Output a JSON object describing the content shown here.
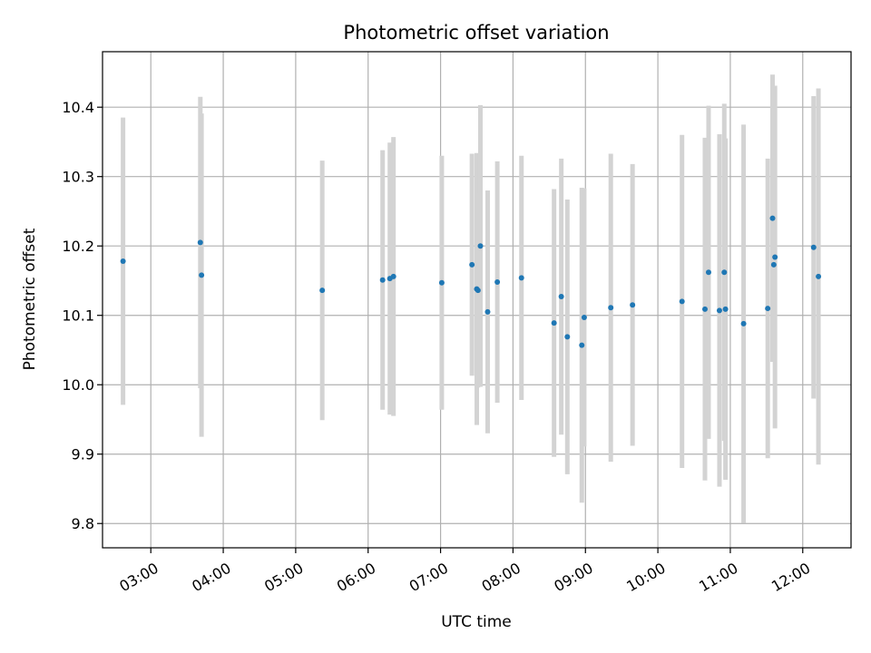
{
  "chart_data": {
    "type": "scatter",
    "title": "Photometric offset variation",
    "xlabel": "UTC time",
    "ylabel": "Photometric offset",
    "grid": true,
    "xlim": [
      "02:20",
      "12:40"
    ],
    "ylim": [
      9.765,
      10.48
    ],
    "x_ticks": [
      "03:00",
      "04:00",
      "05:00",
      "06:00",
      "07:00",
      "08:00",
      "09:00",
      "10:00",
      "11:00",
      "12:00"
    ],
    "y_ticks": [
      9.8,
      9.9,
      10.0,
      10.1,
      10.2,
      10.3,
      10.4
    ],
    "y_tick_labels": [
      "9.8",
      "9.9",
      "10.0",
      "10.1",
      "10.2",
      "10.3",
      "10.4"
    ],
    "colors": {
      "points": "#1f77b4",
      "errorbars": "#d3d3d3",
      "grid": "#b0b0b0"
    },
    "points": [
      {
        "time": "02:37",
        "y": 10.178,
        "err": 0.207
      },
      {
        "time": "03:41",
        "y": 10.205,
        "err": 0.21
      },
      {
        "time": "03:42",
        "y": 10.158,
        "err": 0.233
      },
      {
        "time": "05:22",
        "y": 10.136,
        "err": 0.187
      },
      {
        "time": "06:12",
        "y": 10.151,
        "err": 0.187
      },
      {
        "time": "06:18",
        "y": 10.153,
        "err": 0.196
      },
      {
        "time": "06:21",
        "y": 10.156,
        "err": 0.201
      },
      {
        "time": "07:01",
        "y": 10.147,
        "err": 0.183
      },
      {
        "time": "07:26",
        "y": 10.173,
        "err": 0.16
      },
      {
        "time": "07:30",
        "y": 10.138,
        "err": 0.196
      },
      {
        "time": "07:33",
        "y": 10.2,
        "err": 0.203
      },
      {
        "time": "07:31",
        "y": 10.136,
        "err": 0.14
      },
      {
        "time": "07:39",
        "y": 10.105,
        "err": 0.175
      },
      {
        "time": "07:47",
        "y": 10.148,
        "err": 0.174
      },
      {
        "time": "08:07",
        "y": 10.154,
        "err": 0.176
      },
      {
        "time": "08:34",
        "y": 10.089,
        "err": 0.193
      },
      {
        "time": "08:40",
        "y": 10.127,
        "err": 0.199
      },
      {
        "time": "08:45",
        "y": 10.069,
        "err": 0.198
      },
      {
        "time": "08:57",
        "y": 10.057,
        "err": 0.227
      },
      {
        "time": "08:59",
        "y": 10.097,
        "err": 0.186
      },
      {
        "time": "09:21",
        "y": 10.111,
        "err": 0.222
      },
      {
        "time": "09:39",
        "y": 10.115,
        "err": 0.203
      },
      {
        "time": "10:20",
        "y": 10.12,
        "err": 0.24
      },
      {
        "time": "10:39",
        "y": 10.109,
        "err": 0.247
      },
      {
        "time": "10:42",
        "y": 10.162,
        "err": 0.24
      },
      {
        "time": "10:51",
        "y": 10.107,
        "err": 0.254
      },
      {
        "time": "10:55",
        "y": 10.162,
        "err": 0.243
      },
      {
        "time": "10:56",
        "y": 10.109,
        "err": 0.246
      },
      {
        "time": "11:11",
        "y": 10.088,
        "err": 0.287
      },
      {
        "time": "11:31",
        "y": 10.11,
        "err": 0.216
      },
      {
        "time": "11:35",
        "y": 10.24,
        "err": 0.207
      },
      {
        "time": "11:36",
        "y": 10.173,
        "err": 0.14
      },
      {
        "time": "11:37",
        "y": 10.184,
        "err": 0.247
      },
      {
        "time": "12:09",
        "y": 10.198,
        "err": 0.218
      },
      {
        "time": "12:13",
        "y": 10.156,
        "err": 0.271
      }
    ]
  }
}
